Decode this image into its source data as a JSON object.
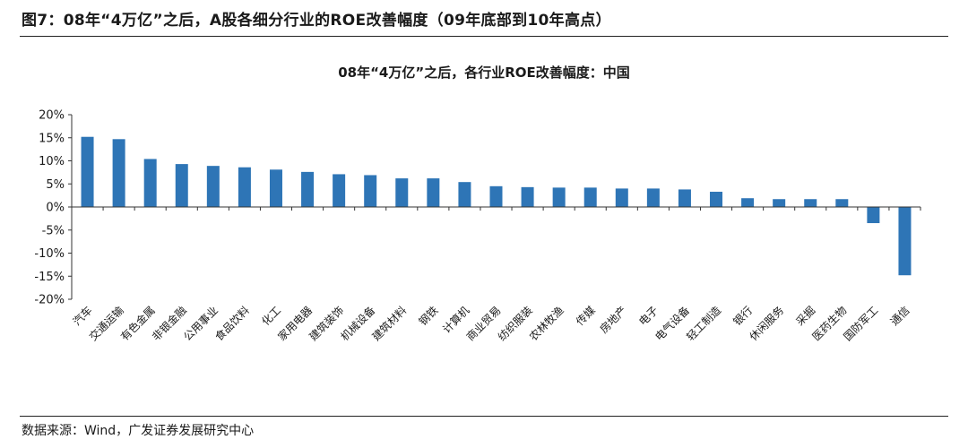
{
  "figure": {
    "title": "图7：08年“4万亿”之后，A股各细分行业的ROE改善幅度（09年底部到10年高点）",
    "source": "数据来源：Wind，广发证券发展研究中心"
  },
  "colors": {
    "bar": "#2e75b6",
    "axis": "#333333",
    "rule": "#222222"
  },
  "chart_data": {
    "type": "bar",
    "title": "08年“4万亿”之后，各行业ROE改善幅度：中国",
    "xlabel": "",
    "ylabel": "",
    "ylim": [
      -20,
      20
    ],
    "y_ticks": [
      20,
      15,
      10,
      5,
      0,
      -5,
      -10,
      -15,
      -20
    ],
    "y_tick_labels": [
      "20%",
      "15%",
      "10%",
      "5%",
      "0%",
      "-5%",
      "-10%",
      "-15%",
      "-20%"
    ],
    "grid": false,
    "legend": "none",
    "categories": [
      "汽车",
      "交通运输",
      "有色金属",
      "非银金融",
      "公用事业",
      "食品饮料",
      "化工",
      "家用电器",
      "建筑装饰",
      "机械设备",
      "建筑材料",
      "钢铁",
      "计算机",
      "商业贸易",
      "纺织服装",
      "农林牧渔",
      "传媒",
      "房地产",
      "电子",
      "电气设备",
      "轻工制造",
      "银行",
      "休闲服务",
      "采掘",
      "医药生物",
      "国防军工",
      "通信"
    ],
    "values": [
      15.2,
      14.7,
      10.4,
      9.3,
      8.9,
      8.6,
      8.1,
      7.6,
      7.1,
      6.9,
      6.2,
      6.2,
      5.4,
      4.5,
      4.3,
      4.2,
      4.2,
      4.0,
      4.0,
      3.8,
      3.3,
      1.9,
      1.7,
      1.7,
      1.7,
      -3.5,
      -14.8
    ]
  }
}
